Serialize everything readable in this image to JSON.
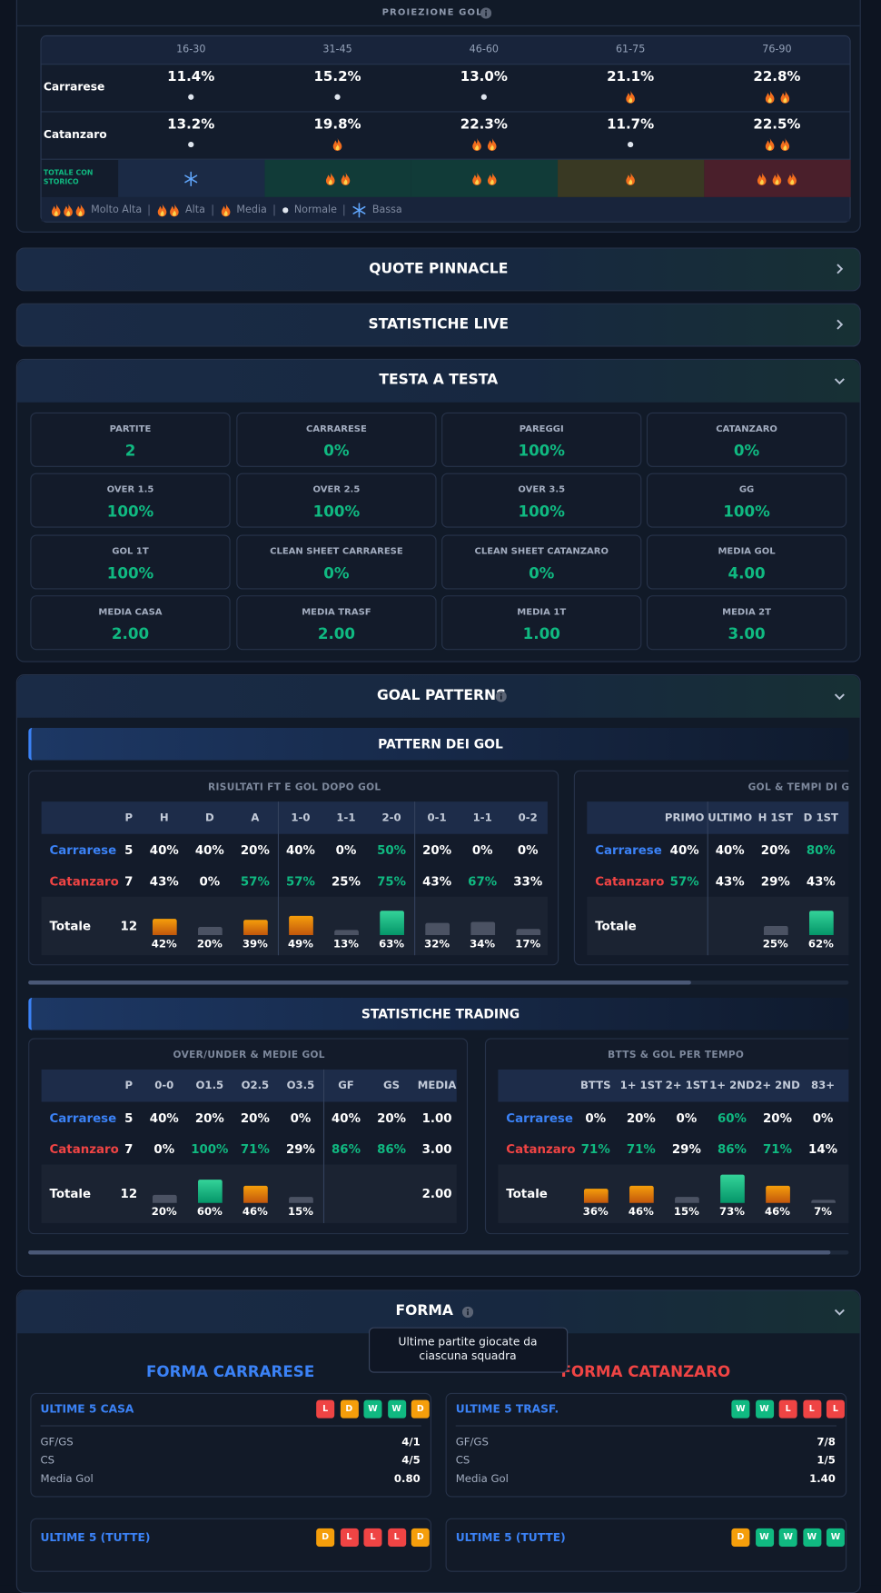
{
  "proiezione": {
    "title": "PROIEZIONE GOL",
    "periods": [
      "16-30",
      "31-45",
      "46-60",
      "61-75",
      "76-90"
    ],
    "rows": [
      {
        "team": "Carrarese",
        "cells": [
          {
            "value": "11.4%",
            "heat": "Normale"
          },
          {
            "value": "15.2%",
            "heat": "Normale"
          },
          {
            "value": "13.0%",
            "heat": "Normale"
          },
          {
            "value": "21.1%",
            "heat": "Media"
          },
          {
            "value": "22.8%",
            "heat": "Alta"
          }
        ]
      },
      {
        "team": "Catanzaro",
        "cells": [
          {
            "value": "13.2%",
            "heat": "Normale"
          },
          {
            "value": "19.8%",
            "heat": "Media"
          },
          {
            "value": "22.3%",
            "heat": "Alta"
          },
          {
            "value": "11.7%",
            "heat": "Normale"
          },
          {
            "value": "22.5%",
            "heat": "Alta"
          }
        ]
      }
    ],
    "total": {
      "label": "TOTALE CON STORICO",
      "heat": [
        "Bassa",
        "Alta",
        "Alta",
        "Media",
        "Molto Alta"
      ]
    },
    "legend": [
      {
        "label": "Molto Alta",
        "icon": "fire",
        "count": 3,
        "tint": "#4a1f2b"
      },
      {
        "label": "Alta",
        "icon": "fire",
        "count": 2,
        "tint": "#113b38"
      },
      {
        "label": "Media",
        "icon": "fire",
        "count": 1,
        "tint": "#393923"
      },
      {
        "label": "Normale",
        "icon": "dot",
        "count": 1
      },
      {
        "label": "Bassa",
        "icon": "snow",
        "count": 1,
        "tint": "#1b2a45"
      }
    ]
  },
  "collapsed": [
    {
      "title": "QUOTE PINNACLE"
    },
    {
      "title": "STATISTICHE LIVE"
    }
  ],
  "testa_a_testa": {
    "title": "TESTA A TESTA",
    "stats": [
      {
        "label": "PARTITE",
        "value": "2"
      },
      {
        "label": "CARRARESE",
        "value": "0%"
      },
      {
        "label": "PAREGGI",
        "value": "100%"
      },
      {
        "label": "CATANZARO",
        "value": "0%"
      },
      {
        "label": "OVER 1.5",
        "value": "100%"
      },
      {
        "label": "OVER 2.5",
        "value": "100%"
      },
      {
        "label": "OVER 3.5",
        "value": "100%"
      },
      {
        "label": "GG",
        "value": "100%"
      },
      {
        "label": "GOL 1T",
        "value": "100%"
      },
      {
        "label": "CLEAN SHEET CARRARESE",
        "value": "0%"
      },
      {
        "label": "CLEAN SHEET CATANZARO",
        "value": "0%"
      },
      {
        "label": "MEDIA GOL",
        "value": "4.00"
      },
      {
        "label": "MEDIA CASA",
        "value": "2.00"
      },
      {
        "label": "MEDIA TRASF",
        "value": "2.00"
      },
      {
        "label": "MEDIA 1T",
        "value": "1.00"
      },
      {
        "label": "MEDIA 2T",
        "value": "3.00"
      }
    ]
  },
  "goal_patterns": {
    "title": "GOAL PATTERNS",
    "groups": [
      {
        "title": "PATTERN DEI GOL",
        "tables": [
          {
            "title": "RISULTATI FT E GOL DOPO GOL",
            "column_groups": [
              [
                "P",
                "H",
                "D",
                "A"
              ],
              [
                "1-0",
                "1-1",
                "2-0"
              ],
              [
                "0-1",
                "1-1",
                "0-2"
              ]
            ],
            "rows": [
              {
                "name": "Carrarese",
                "color": "#3b82f6",
                "cells": [
                  "5",
                  "40%",
                  "40%",
                  "20%",
                  "40%",
                  "0%",
                  "50%",
                  "20%",
                  "0%",
                  "0%"
                ]
              },
              {
                "name": "Catanzaro",
                "color": "#ef4444",
                "cells": [
                  "7",
                  "43%",
                  "0%",
                  "57%",
                  "57%",
                  "25%",
                  "75%",
                  "43%",
                  "67%",
                  "33%"
                ]
              },
              {
                "name": "Totale",
                "color": "#ffffff",
                "cells": [
                  "12",
                  {
                    "value": 42,
                    "label": "42%"
                  },
                  {
                    "value": 20,
                    "label": "20%"
                  },
                  {
                    "value": 39,
                    "label": "39%"
                  },
                  {
                    "value": 49,
                    "label": "49%"
                  },
                  {
                    "value": 13,
                    "label": "13%"
                  },
                  {
                    "value": 63,
                    "label": "63%"
                  },
                  {
                    "value": 32,
                    "label": "32%"
                  },
                  {
                    "value": 34,
                    "label": "34%"
                  },
                  {
                    "value": 17,
                    "label": "17%"
                  }
                ]
              }
            ]
          },
          {
            "title": "GOL & TEMPI DI GOL",
            "column_groups": [
              [
                "PRIMO"
              ],
              [
                "ULTIMO",
                "H 1ST",
                "D 1ST"
              ]
            ],
            "rows": [
              {
                "name": "Carrarese",
                "color": "#3b82f6",
                "cells": [
                  "40%",
                  "40%",
                  "20%",
                  "80%"
                ]
              },
              {
                "name": "Catanzaro",
                "color": "#ef4444",
                "cells": [
                  "57%",
                  "43%",
                  "29%",
                  "43%"
                ]
              },
              {
                "name": "Totale",
                "color": "#ffffff",
                "cells": [
                  null,
                  null,
                  {
                    "value": 25,
                    "label": "25%"
                  },
                  {
                    "value": 62,
                    "label": "62%"
                  }
                ]
              }
            ]
          }
        ]
      },
      {
        "title": "STATISTICHE TRADING",
        "tables": [
          {
            "title": "OVER/UNDER & MEDIE GOL",
            "column_groups": [
              [
                "P",
                "0-0",
                "O1.5",
                "O2.5",
                "O3.5"
              ],
              [
                "GF",
                "GS",
                "MEDIA"
              ]
            ],
            "rows": [
              {
                "name": "Carrarese",
                "color": "#3b82f6",
                "cells": [
                  "5",
                  "40%",
                  "20%",
                  "20%",
                  "0%",
                  "40%",
                  "20%",
                  "1.00"
                ]
              },
              {
                "name": "Catanzaro",
                "color": "#ef4444",
                "cells": [
                  "7",
                  "0%",
                  "100%",
                  "71%",
                  "29%",
                  "86%",
                  "86%",
                  "3.00"
                ]
              },
              {
                "name": "Totale",
                "color": "#ffffff",
                "cells": [
                  "12",
                  {
                    "value": 20,
                    "label": "20%"
                  },
                  {
                    "value": 60,
                    "label": "60%"
                  },
                  {
                    "value": 46,
                    "label": "46%"
                  },
                  {
                    "value": 15,
                    "label": "15%"
                  },
                  null,
                  null,
                  "2.00"
                ]
              }
            ]
          },
          {
            "title": "BTTS & GOL PER TEMPO",
            "column_groups": [
              [
                "BTTS",
                "1+ 1ST",
                "2+ 1ST",
                "1+ 2ND",
                "2+ 2ND",
                "83+"
              ]
            ],
            "rows": [
              {
                "name": "Carrarese",
                "color": "#3b82f6",
                "cells": [
                  "0%",
                  "20%",
                  "0%",
                  "60%",
                  "20%",
                  "0%"
                ]
              },
              {
                "name": "Catanzaro",
                "color": "#ef4444",
                "cells": [
                  "71%",
                  "71%",
                  "29%",
                  "86%",
                  "71%",
                  "14%"
                ]
              },
              {
                "name": "Totale",
                "color": "#ffffff",
                "cells": [
                  {
                    "value": 36,
                    "label": "36%"
                  },
                  {
                    "value": 46,
                    "label": "46%"
                  },
                  {
                    "value": 15,
                    "label": "15%"
                  },
                  {
                    "value": 73,
                    "label": "73%"
                  },
                  {
                    "value": 46,
                    "label": "46%"
                  },
                  {
                    "value": 7,
                    "label": "7%"
                  }
                ]
              }
            ]
          }
        ]
      }
    ]
  },
  "forma": {
    "title": "FORMA",
    "tooltip": "Ultime partite giocate da ciascuna squadra",
    "badge_colors": {
      "W": "#10b981",
      "L": "#ef4444",
      "D": "#f59e0b"
    },
    "teams": [
      {
        "title": "FORMA CARRARESE",
        "color": "#3b82f6",
        "cards": [
          {
            "title": "ULTIME 5 CASA",
            "results": [
              "L",
              "D",
              "W",
              "W",
              "D"
            ],
            "stats": [
              [
                "GF/GS",
                "4/1"
              ],
              [
                "CS",
                "4/5"
              ],
              [
                "Media Gol",
                "0.80"
              ]
            ]
          },
          {
            "title": "ULTIME 5 (TUTTE)",
            "results": [
              "D",
              "L",
              "L",
              "L",
              "D"
            ]
          }
        ]
      },
      {
        "title": "FORMA CATANZARO",
        "color": "#ef4444",
        "cards": [
          {
            "title": "ULTIME 5 TRASF.",
            "results": [
              "W",
              "W",
              "L",
              "L",
              "L"
            ],
            "stats": [
              [
                "GF/GS",
                "7/8"
              ],
              [
                "CS",
                "1/5"
              ],
              [
                "Media Gol",
                "1.40"
              ]
            ]
          },
          {
            "title": "ULTIME 5 (TUTTE)",
            "results": [
              "D",
              "W",
              "W",
              "W",
              "W"
            ]
          }
        ]
      }
    ]
  }
}
